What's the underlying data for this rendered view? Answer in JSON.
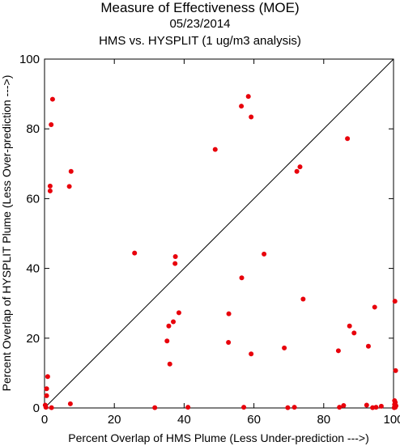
{
  "title": "Measure of Effectiveness (MOE)",
  "date": "05/23/2014",
  "subtitle": "HMS vs. HYSPLIT  (1 ug/m3 analysis)",
  "chart_data": {
    "type": "scatter",
    "title": "Measure of Effectiveness (MOE)",
    "xlabel": "Percent Overlap of HMS Plume (Less Under-prediction --->)",
    "ylabel": "Percent Overlap of HYSPLIT Plume (Less Over-prediction --->)",
    "xlim": [
      0,
      100
    ],
    "ylim": [
      0,
      100
    ],
    "xticks": [
      "0",
      "20",
      "40",
      "60",
      "80",
      "100"
    ],
    "yticks": [
      "0",
      "20",
      "40",
      "60",
      "80",
      "100"
    ],
    "grid": false,
    "reference_line": "y = x",
    "point_color": "#e8000b",
    "points": [
      [
        2.3,
        88.5
      ],
      [
        1.9,
        81.2
      ],
      [
        7.6,
        67.8
      ],
      [
        1.6,
        63.6
      ],
      [
        1.6,
        62.2
      ],
      [
        7.1,
        63.5
      ],
      [
        0.9,
        9.0
      ],
      [
        0.6,
        5.5
      ],
      [
        0.6,
        3.5
      ],
      [
        0.2,
        0.8
      ],
      [
        0.4,
        0.2
      ],
      [
        2.0,
        0.1
      ],
      [
        7.4,
        1.2
      ],
      [
        25.8,
        44.4
      ],
      [
        37.5,
        43.4
      ],
      [
        37.4,
        41.4
      ],
      [
        38.5,
        27.3
      ],
      [
        36.9,
        24.7
      ],
      [
        35.6,
        23.5
      ],
      [
        35.1,
        19.2
      ],
      [
        35.9,
        12.6
      ],
      [
        31.6,
        0.1
      ],
      [
        41.1,
        0.2
      ],
      [
        48.9,
        74.1
      ],
      [
        58.4,
        89.3
      ],
      [
        56.4,
        86.5
      ],
      [
        59.2,
        83.4
      ],
      [
        62.9,
        44.1
      ],
      [
        56.5,
        37.3
      ],
      [
        52.8,
        27.0
      ],
      [
        52.7,
        18.8
      ],
      [
        59.2,
        15.5
      ],
      [
        57.1,
        0.2
      ],
      [
        86.8,
        77.2
      ],
      [
        73.2,
        69.1
      ],
      [
        72.3,
        67.8
      ],
      [
        74.1,
        31.2
      ],
      [
        68.7,
        17.2
      ],
      [
        69.7,
        0.1
      ],
      [
        71.6,
        0.2
      ],
      [
        84.2,
        16.4
      ],
      [
        84.5,
        0.2
      ],
      [
        85.7,
        0.7
      ],
      [
        87.4,
        23.5
      ],
      [
        88.7,
        21.5
      ],
      [
        92.8,
        17.7
      ],
      [
        94.6,
        28.9
      ],
      [
        92.3,
        0.8
      ],
      [
        94.0,
        0.1
      ],
      [
        95.0,
        0.2
      ],
      [
        96.5,
        0.5
      ],
      [
        100.4,
        30.6
      ],
      [
        100.6,
        10.7
      ],
      [
        100.3,
        2.1
      ],
      [
        100.5,
        1.6
      ],
      [
        100.3,
        1.0
      ],
      [
        100.7,
        0.6
      ],
      [
        100.5,
        0.2
      ],
      [
        100.2,
        0.1
      ]
    ]
  }
}
